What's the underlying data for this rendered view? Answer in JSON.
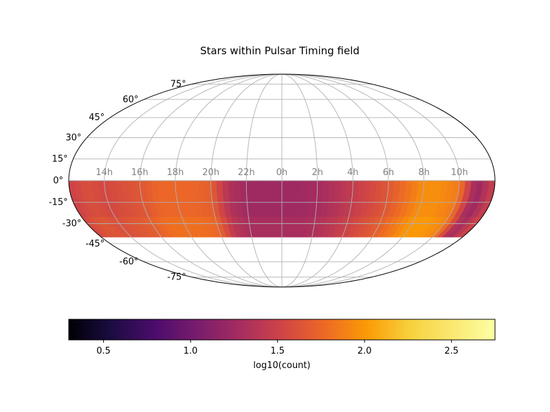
{
  "chart_data": {
    "type": "heatmap",
    "projection": "mollweide",
    "title": "Stars within Pulsar Timing field",
    "grid": true,
    "ra_tick_labels": [
      "14h",
      "16h",
      "18h",
      "20h",
      "22h",
      "0h",
      "2h",
      "4h",
      "6h",
      "8h",
      "10h"
    ],
    "ra_tick_values_deg": [
      210,
      240,
      270,
      300,
      330,
      0,
      30,
      60,
      90,
      120,
      150
    ],
    "dec_tick_labels": [
      "-75°",
      "-60°",
      "-45°",
      "-30°",
      "-15°",
      "0°",
      "15°",
      "30°",
      "45°",
      "60°",
      "75°"
    ],
    "dec_tick_values_deg": [
      -75,
      -60,
      -45,
      -30,
      -15,
      0,
      15,
      30,
      45,
      60,
      75
    ],
    "data_dec_range_deg": [
      -40,
      0
    ],
    "colormap": "inferno",
    "colorbar": {
      "label": "log10(count)",
      "range": [
        0.3,
        2.75
      ],
      "tick_labels": [
        "0.5",
        "1.0",
        "1.5",
        "2.0",
        "2.5"
      ],
      "tick_values": [
        0.5,
        1.0,
        1.5,
        2.0,
        2.5
      ]
    },
    "density_profile": {
      "ra_deg": [
        0,
        15,
        30,
        45,
        60,
        75,
        90,
        105,
        120,
        135,
        150,
        165,
        180,
        195,
        210,
        225,
        240,
        255,
        270,
        285,
        300,
        315,
        330,
        345
      ],
      "log10_count": [
        1.25,
        1.25,
        1.28,
        1.35,
        1.45,
        1.55,
        1.65,
        1.8,
        1.95,
        1.95,
        1.85,
        1.2,
        1.5,
        1.6,
        1.55,
        1.6,
        1.65,
        1.75,
        1.75,
        1.75,
        1.7,
        1.35,
        1.25,
        1.25
      ]
    }
  }
}
